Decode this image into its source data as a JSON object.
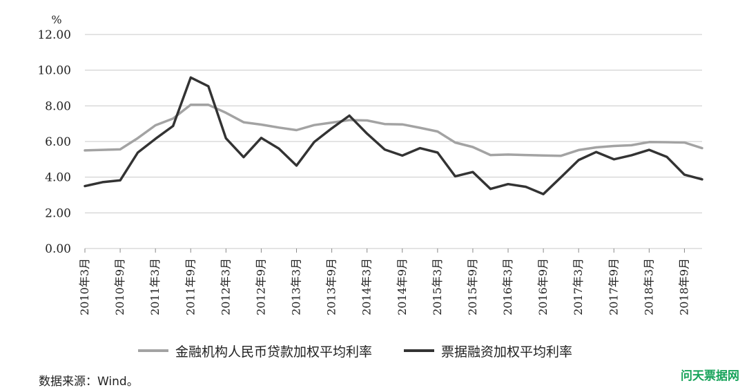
{
  "chart_data": {
    "type": "line",
    "title": "",
    "ylabel": "%",
    "xlabel": "",
    "ylim": [
      0,
      12
    ],
    "yticks": [
      "0.00",
      "2.00",
      "4.00",
      "6.00",
      "8.00",
      "10.00",
      "12.00"
    ],
    "x_tick_labels": [
      "2010年3月",
      "2010年9月",
      "2011年3月",
      "2011年9月",
      "2012年3月",
      "2012年9月",
      "2013年3月",
      "2013年9月",
      "2014年3月",
      "2014年9月",
      "2015年3月",
      "2015年9月",
      "2016年3月",
      "2016年9月",
      "2017年3月",
      "2017年9月",
      "2018年3月",
      "2018年9月"
    ],
    "x": [
      "2010Q1",
      "2010Q2",
      "2010Q3",
      "2010Q4",
      "2011Q1",
      "2011Q2",
      "2011Q3",
      "2011Q4",
      "2012Q1",
      "2012Q2",
      "2012Q3",
      "2012Q4",
      "2013Q1",
      "2013Q2",
      "2013Q3",
      "2013Q4",
      "2014Q1",
      "2014Q2",
      "2014Q3",
      "2014Q4",
      "2015Q1",
      "2015Q2",
      "2015Q3",
      "2015Q4",
      "2016Q1",
      "2016Q2",
      "2016Q3",
      "2016Q4",
      "2017Q1",
      "2017Q2",
      "2017Q3",
      "2017Q4",
      "2018Q1",
      "2018Q2",
      "2018Q3",
      "2018Q4"
    ],
    "grid": true,
    "legend_position": "bottom",
    "series": [
      {
        "name": "金融机构人民币贷款加权平均利率",
        "color": "#a3a3a3",
        "values": [
          5.5,
          5.53,
          5.56,
          6.19,
          6.91,
          7.29,
          8.06,
          8.06,
          7.61,
          7.08,
          6.95,
          6.78,
          6.64,
          6.92,
          7.06,
          7.2,
          7.18,
          6.98,
          6.96,
          6.77,
          6.56,
          5.94,
          5.69,
          5.24,
          5.27,
          5.24,
          5.22,
          5.2,
          5.52,
          5.67,
          5.75,
          5.79,
          5.97,
          5.96,
          5.94,
          5.63
        ]
      },
      {
        "name": "票据融资加权平均利率",
        "color": "#333333",
        "values": [
          3.5,
          3.72,
          3.82,
          5.38,
          6.15,
          6.87,
          9.59,
          9.1,
          6.18,
          5.12,
          6.2,
          5.6,
          4.65,
          5.97,
          6.74,
          7.45,
          6.44,
          5.55,
          5.21,
          5.63,
          5.38,
          4.05,
          4.29,
          3.34,
          3.61,
          3.46,
          3.05,
          4.0,
          4.96,
          5.41,
          5.0,
          5.23,
          5.53,
          5.14,
          4.14,
          3.88
        ]
      }
    ]
  },
  "footer": {
    "source": "数据来源：Wind。",
    "watermark": "问天票据网",
    "watermark_color": "#17a35a"
  }
}
